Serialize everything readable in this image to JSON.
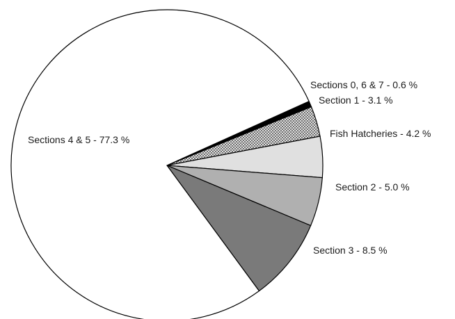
{
  "chart_data": {
    "type": "pie",
    "title": "",
    "slices": [
      {
        "label": "Sections 0, 6 & 7 - 0.6 %",
        "value": 0.6,
        "fill": "#000000",
        "pattern": "solid"
      },
      {
        "label": "Section 1 - 3.1 %",
        "value": 3.1,
        "fill": "#ffffff",
        "pattern": "crosshatch"
      },
      {
        "label": "Fish Hatcheries - 4.2 %",
        "value": 4.2,
        "fill": "#e0e0e0",
        "pattern": "solid"
      },
      {
        "label": "Section 2 - 5.0 %",
        "value": 5.0,
        "fill": "#b0b0b0",
        "pattern": "solid"
      },
      {
        "label": "Section 3 - 8.5 %",
        "value": 8.5,
        "fill": "#7a7a7a",
        "pattern": "solid"
      },
      {
        "label": "Sections 4 & 5 - 77.3 %",
        "value": 77.3,
        "fill": "#ffffff",
        "pattern": "solid"
      }
    ],
    "direction": "clockwise from slightly above the 3 o'clock position"
  }
}
